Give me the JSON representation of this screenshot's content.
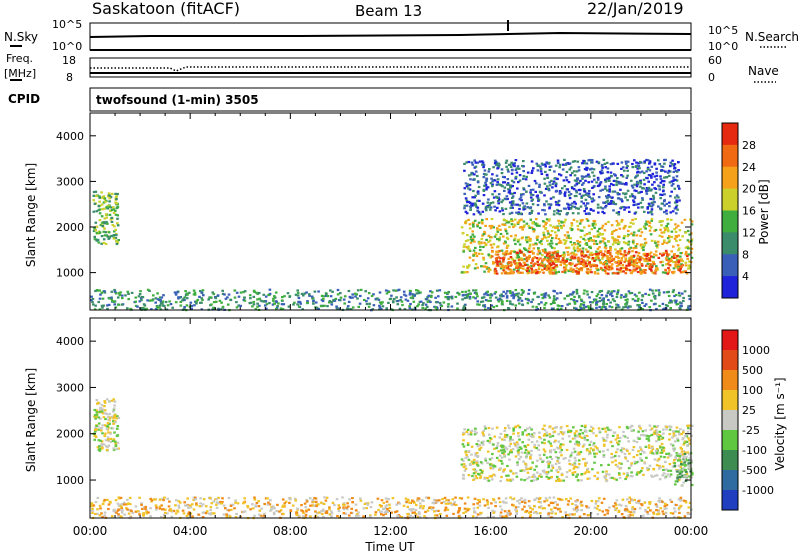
{
  "header": {
    "station": "Saskatoon (fitACF)",
    "beam": "Beam 13",
    "date": "22/Jan/2019"
  },
  "strip_labels": {
    "nsky": "N.Sky",
    "nsky_ticks": [
      "10^5",
      "10^0"
    ],
    "nsearch": "N.Search",
    "nsearch_ticks": [
      "10^5",
      "10^0"
    ],
    "freq": "Freq.",
    "freq_unit": "[MHz]",
    "freq_ticks": [
      "18",
      "8"
    ],
    "nave": "Nave",
    "nave_ticks": [
      "60",
      "0"
    ],
    "cpid": "CPID",
    "cpid_text": "twofsound (1-min) 3505"
  },
  "chart_data": [
    {
      "type": "heatmap",
      "name": "power-panel",
      "ylabel": "Slant Range [km]",
      "y_ticks": [
        "1000",
        "2000",
        "3000",
        "4000"
      ],
      "ylim": [
        180,
        4500
      ],
      "colorbar_label": "Power [dB]",
      "colorbar_ticks": [
        "4",
        "8",
        "12",
        "16",
        "20",
        "24",
        "28"
      ],
      "colorbar_colors": [
        "#1f23d9",
        "#3a5fb8",
        "#3a8c6a",
        "#3fae3f",
        "#cbd12a",
        "#f5a21a",
        "#f06a14",
        "#e62a12"
      ],
      "regions": [
        {
          "t0": 0.1,
          "t1": 1.1,
          "r0": 1650,
          "r1": 2800,
          "level": 3
        },
        {
          "t0": 0.0,
          "t1": 24.0,
          "r0": 200,
          "r1": 650,
          "level": 2
        },
        {
          "t0": 14.8,
          "t1": 24.0,
          "r0": 1000,
          "r1": 2200,
          "level": 4
        },
        {
          "t0": 16.0,
          "t1": 23.8,
          "r0": 1000,
          "r1": 1500,
          "level": 6
        },
        {
          "t0": 14.9,
          "t1": 23.5,
          "r0": 2300,
          "r1": 3500,
          "level": 1
        }
      ]
    },
    {
      "type": "heatmap",
      "name": "velocity-panel",
      "ylabel": "Slant Range [km]",
      "y_ticks": [
        "1000",
        "2000",
        "3000",
        "4000"
      ],
      "ylim": [
        180,
        4500
      ],
      "colorbar_label": "Velocity [m s⁻¹]",
      "colorbar_ticks": [
        "1000",
        "500",
        "100",
        "25",
        "-25",
        "-100",
        "-500",
        "-1000"
      ],
      "colorbar_colors": [
        "#1f3fc0",
        "#2f6aa0",
        "#3d8d52",
        "#60c740",
        "#c8c8c4",
        "#f0c428",
        "#f08a18",
        "#e24a18",
        "#e21818"
      ],
      "regions": [
        {
          "t0": 0.1,
          "t1": 1.1,
          "r0": 1650,
          "r1": 2800,
          "level": 4
        },
        {
          "t0": 0.0,
          "t1": 24.0,
          "r0": 200,
          "r1": 650,
          "level": 5
        },
        {
          "t0": 14.8,
          "t1": 24.0,
          "r0": 1000,
          "r1": 2200,
          "level": 4
        },
        {
          "t0": 23.3,
          "t1": 24.0,
          "r0": 900,
          "r1": 1600,
          "level": 3
        }
      ]
    }
  ],
  "x_axis": {
    "label": "Time UT",
    "ticks": [
      "00:00",
      "04:00",
      "08:00",
      "12:00",
      "16:00",
      "20:00",
      "00:00"
    ]
  }
}
